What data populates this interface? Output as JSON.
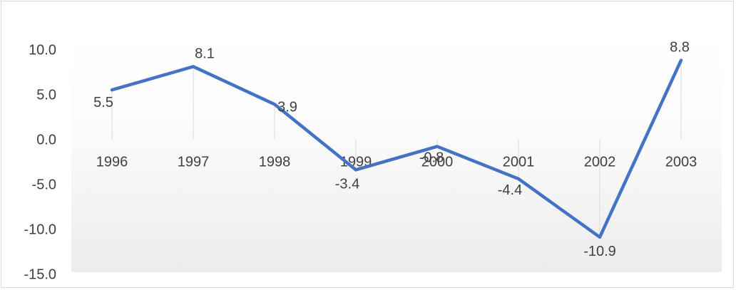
{
  "chart_data": {
    "type": "line",
    "title": "",
    "xlabel": "",
    "ylabel": "",
    "categories": [
      "1996",
      "1997",
      "1998",
      "1999",
      "2000",
      "2001",
      "2002",
      "2003"
    ],
    "series": [
      {
        "values": [
          5.5,
          8.1,
          3.9,
          -3.4,
          -0.8,
          -4.4,
          -10.9,
          8.8
        ],
        "labels": [
          "5.5",
          "8.1",
          "3.9",
          "-3.4",
          "-0.8",
          "-4.4",
          "-10.9",
          "8.8"
        ],
        "color": "#4472c4"
      }
    ],
    "yticks": [
      "10.0",
      "5.0",
      "0.0",
      "-5.0",
      "-10.0",
      "-15.0"
    ],
    "ytick_values": [
      10,
      5,
      0,
      -5,
      -10,
      -15
    ],
    "ylim": [
      -15,
      12.5
    ],
    "grid": "vertical-lines-only",
    "legend": "none",
    "background": "light gray gradient below plot area"
  }
}
